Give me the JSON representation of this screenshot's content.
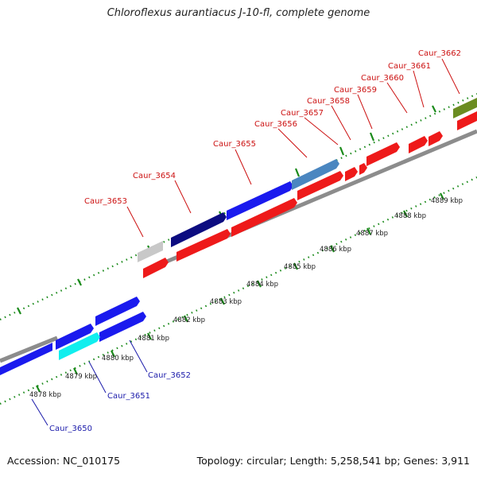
{
  "title": "Chloroflexus aurantiacus J-10-fl, complete genome",
  "footer": {
    "accession": "Accession: NC_010175",
    "stats": "Topology: circular; Length: 5,258,541 bp; Genes: 3,911"
  },
  "colors": {
    "backbone": "#999999",
    "forward_gene": "#1515ee",
    "reverse_gene": "#ee1515",
    "tick": "#1a8a1a",
    "label_top": "#cc1111",
    "label_bottom": "#1a1aaa",
    "scale_text": "#222222"
  },
  "scale_labels": [
    "4878 kbp",
    "4879 kbp",
    "4880 kbp",
    "4881 kbp",
    "4882 kbp",
    "4883 kbp",
    "4884 kbp",
    "4885 kbp",
    "4886 kbp",
    "4887 kbp",
    "4888 kbp",
    "4889 kbp"
  ],
  "gene_labels_top": [
    "Caur_3653",
    "Caur_3654",
    "Caur_3655",
    "Caur_3656",
    "Caur_3657",
    "Caur_3658",
    "Caur_3659",
    "Caur_3660",
    "Caur_3661",
    "Caur_3662"
  ],
  "gene_labels_bottom": [
    "Caur_3652",
    "Caur_3651",
    "Caur_3650"
  ],
  "feature_color_names": [
    "blue",
    "cyan",
    "navy",
    "steelblue",
    "grey",
    "olive",
    "red"
  ]
}
